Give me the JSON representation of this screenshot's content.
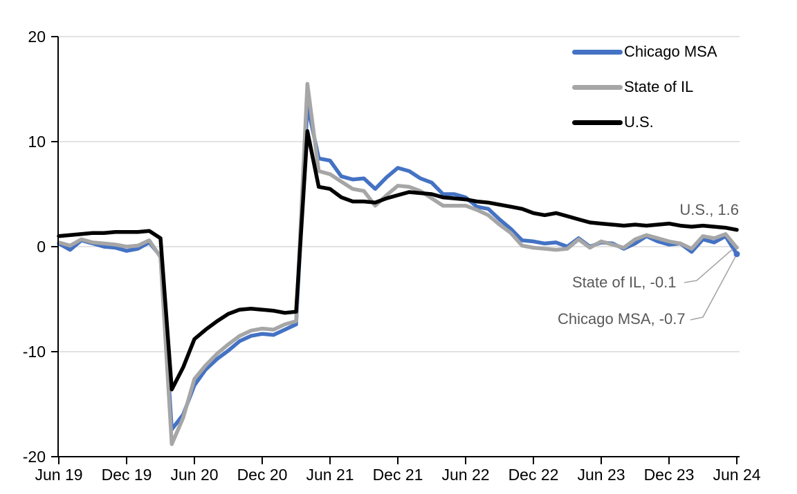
{
  "chart_data": {
    "type": "line",
    "title": "",
    "xlabel": "",
    "ylabel": "",
    "ylim": [
      -20,
      20
    ],
    "grid": "horizontal",
    "legend_position": "top-right",
    "y_ticks": [
      "20",
      "10",
      "0",
      "-10",
      "-20"
    ],
    "y_tick_values": [
      20,
      10,
      0,
      -10,
      -20
    ],
    "gridline_values": [
      20,
      10,
      0,
      -10
    ],
    "x_tick_labels": [
      "Jun 19",
      "Dec 19",
      "Jun 20",
      "Dec 20",
      "Jun 21",
      "Dec 21",
      "Jun 22",
      "Dec 22",
      "Jun 23",
      "Dec 23",
      "Jun 24"
    ],
    "x_tick_indices": [
      0,
      6,
      12,
      18,
      24,
      30,
      36,
      42,
      48,
      54,
      60
    ],
    "x": [
      "Jun 19",
      "Jul 19",
      "Aug 19",
      "Sep 19",
      "Oct 19",
      "Nov 19",
      "Dec 19",
      "Jan 20",
      "Feb 20",
      "Mar 20",
      "Apr 20",
      "May 20",
      "Jun 20",
      "Jul 20",
      "Aug 20",
      "Sep 20",
      "Oct 20",
      "Nov 20",
      "Dec 20",
      "Jan 21",
      "Feb 21",
      "Mar 21",
      "Apr 21",
      "May 21",
      "Jun 21",
      "Jul 21",
      "Aug 21",
      "Sep 21",
      "Oct 21",
      "Nov 21",
      "Dec 21",
      "Jan 22",
      "Feb 22",
      "Mar 22",
      "Apr 22",
      "May 22",
      "Jun 22",
      "Jul 22",
      "Aug 22",
      "Sep 22",
      "Oct 22",
      "Nov 22",
      "Dec 22",
      "Jan 23",
      "Feb 23",
      "Mar 23",
      "Apr 23",
      "May 23",
      "Jun 23",
      "Jul 23",
      "Aug 23",
      "Sep 23",
      "Oct 23",
      "Nov 23",
      "Dec 23",
      "Jan 24",
      "Feb 24",
      "Mar 24",
      "Apr 24",
      "May 24",
      "Jun 24"
    ],
    "series": [
      {
        "name": "Chicago MSA",
        "color": "#4472C4",
        "end_value": -0.7,
        "values": [
          0.3,
          -0.3,
          0.6,
          0.3,
          0.0,
          -0.1,
          -0.4,
          -0.2,
          0.4,
          -0.9,
          -17.4,
          -16.0,
          -13.2,
          -11.7,
          -10.7,
          -9.9,
          -9.0,
          -8.5,
          -8.3,
          -8.4,
          -7.9,
          -7.4,
          13.5,
          8.4,
          8.2,
          6.7,
          6.4,
          6.5,
          5.5,
          6.6,
          7.5,
          7.2,
          6.5,
          6.1,
          5.0,
          5.0,
          4.7,
          3.8,
          3.6,
          2.6,
          1.7,
          0.6,
          0.5,
          0.3,
          0.4,
          0.0,
          0.8,
          0.0,
          0.4,
          0.3,
          -0.2,
          0.3,
          1.0,
          0.5,
          0.2,
          0.3,
          -0.5,
          0.7,
          0.4,
          1.0,
          -0.7
        ]
      },
      {
        "name": "State of IL",
        "color": "#A6A6A6",
        "end_value": -0.1,
        "values": [
          0.4,
          0.1,
          0.7,
          0.4,
          0.3,
          0.2,
          0.0,
          0.1,
          0.6,
          -1.0,
          -18.8,
          -16.3,
          -12.6,
          -11.3,
          -10.2,
          -9.3,
          -8.5,
          -8.0,
          -7.8,
          -7.9,
          -7.4,
          -7.1,
          15.5,
          7.2,
          6.9,
          6.2,
          5.5,
          5.3,
          3.9,
          4.9,
          5.8,
          5.7,
          5.3,
          4.6,
          3.9,
          3.9,
          3.9,
          3.5,
          3.0,
          2.1,
          1.3,
          0.1,
          -0.1,
          -0.2,
          -0.3,
          -0.2,
          0.7,
          -0.1,
          0.5,
          0.2,
          -0.1,
          0.7,
          1.1,
          0.8,
          0.5,
          0.3,
          -0.2,
          1.0,
          0.8,
          1.2,
          -0.1
        ]
      },
      {
        "name": "U.S.",
        "color": "#000000",
        "end_value": 1.6,
        "values": [
          1.0,
          1.1,
          1.2,
          1.3,
          1.3,
          1.4,
          1.4,
          1.4,
          1.5,
          0.8,
          -13.6,
          -11.5,
          -8.8,
          -7.9,
          -7.1,
          -6.4,
          -6.0,
          -5.9,
          -6.0,
          -6.1,
          -6.3,
          -6.2,
          11.0,
          5.7,
          5.5,
          4.7,
          4.3,
          4.3,
          4.2,
          4.6,
          4.9,
          5.2,
          5.1,
          5.0,
          4.7,
          4.6,
          4.5,
          4.3,
          4.2,
          4.0,
          3.8,
          3.6,
          3.2,
          3.0,
          3.2,
          2.9,
          2.6,
          2.3,
          2.2,
          2.1,
          2.0,
          2.1,
          2.0,
          2.1,
          2.2,
          2.0,
          1.9,
          2.0,
          1.9,
          1.8,
          1.6
        ]
      }
    ]
  },
  "annotations": {
    "us": "U.S., 1.6",
    "il": "State of IL, -0.1",
    "chicago": "Chicago MSA, -0.7"
  },
  "colors": {
    "background": "#FFFFFF",
    "gridline": "#D9D9D9",
    "axis": "#000000",
    "tick_label": "#000000",
    "annotation_text": "#595959",
    "leader_line": "#A6A6A6"
  }
}
